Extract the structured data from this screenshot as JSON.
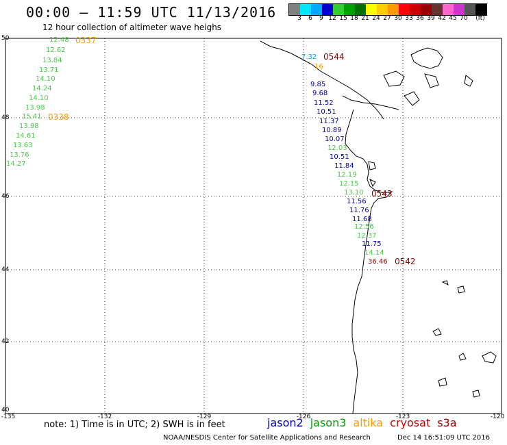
{
  "header": {
    "title": "00:00 – 11:59 UTC 11/13/2016",
    "subtitle": "12 hour collection of altimeter wave heighs"
  },
  "colorbar": {
    "colors": [
      "#808080",
      "#00e5ff",
      "#00aaff",
      "#0000cc",
      "#33cc33",
      "#00a000",
      "#007000",
      "#ffff00",
      "#ffcc00",
      "#ff9900",
      "#ff0000",
      "#cc0000",
      "#990000",
      "#663333",
      "#ff66cc",
      "#cc33cc",
      "#555555",
      "#000000"
    ],
    "labels": [
      "3",
      "6",
      "9",
      "12",
      "15",
      "18",
      "21",
      "24",
      "27",
      "30",
      "33",
      "36",
      "39",
      "42",
      "45",
      "70",
      "(ft)"
    ]
  },
  "axes": {
    "lat_labels": [
      "50",
      "48",
      "46",
      "44",
      "42",
      "40"
    ],
    "lon_labels": [
      "-135",
      "-132",
      "-129",
      "-126",
      "-123",
      "-120"
    ]
  },
  "tracks": [
    {
      "satellite": "jason3",
      "color": "#44cc44",
      "values": [
        "12.48",
        "12.62",
        "13.84",
        "13.71",
        "14.10",
        "14.24",
        "14.10",
        "13.98",
        "15.41",
        "13.98",
        "14.61",
        "13.63",
        "13.76",
        "14.27"
      ]
    },
    {
      "satellite": "jason2",
      "color": "#0000aa",
      "values": [
        "9.85",
        "9.68",
        "11.52",
        "10.51",
        "11.37",
        "10.89",
        "10.07",
        "10.51",
        "11.84",
        "11.56",
        "11.76",
        "11.68",
        "11.75"
      ]
    },
    {
      "satellite": "jason3",
      "color": "#44cc44",
      "values": [
        "12.03",
        "12.19",
        "12.15",
        "13.10",
        "12.56",
        "12.37",
        "14.14"
      ]
    },
    {
      "satellite": "misc",
      "color": "#00aaff",
      "values": [
        "7.32"
      ]
    },
    {
      "satellite": "altika",
      "color": "#ff9900",
      "values": [
        "16"
      ]
    },
    {
      "satellite": "cryosat",
      "color": "#880000",
      "values": [
        "36.46"
      ]
    }
  ],
  "pass_times": [
    {
      "label": "0337",
      "color": "#ff9900"
    },
    {
      "label": "0338",
      "color": "#ff9900"
    },
    {
      "label": "0544",
      "color": "#880000"
    },
    {
      "label": "0543",
      "color": "#880000"
    },
    {
      "label": "0542",
      "color": "#880000"
    }
  ],
  "footer": {
    "note": "note: 1) Time is in UTC; 2) SWH is in feet",
    "satellites": [
      {
        "name": "jason2",
        "color": "#0000cc"
      },
      {
        "name": "jason3",
        "color": "#00a000"
      },
      {
        "name": "altika",
        "color": "#ff9900"
      },
      {
        "name": "cryosat",
        "color": "#cc0000"
      },
      {
        "name": "s3a",
        "color": "#990000"
      }
    ],
    "credit": "NOAA/NESDIS Center for Satellite Applications and Research",
    "timestamp": "Dec 14 16:51:09 UTC 2016"
  }
}
